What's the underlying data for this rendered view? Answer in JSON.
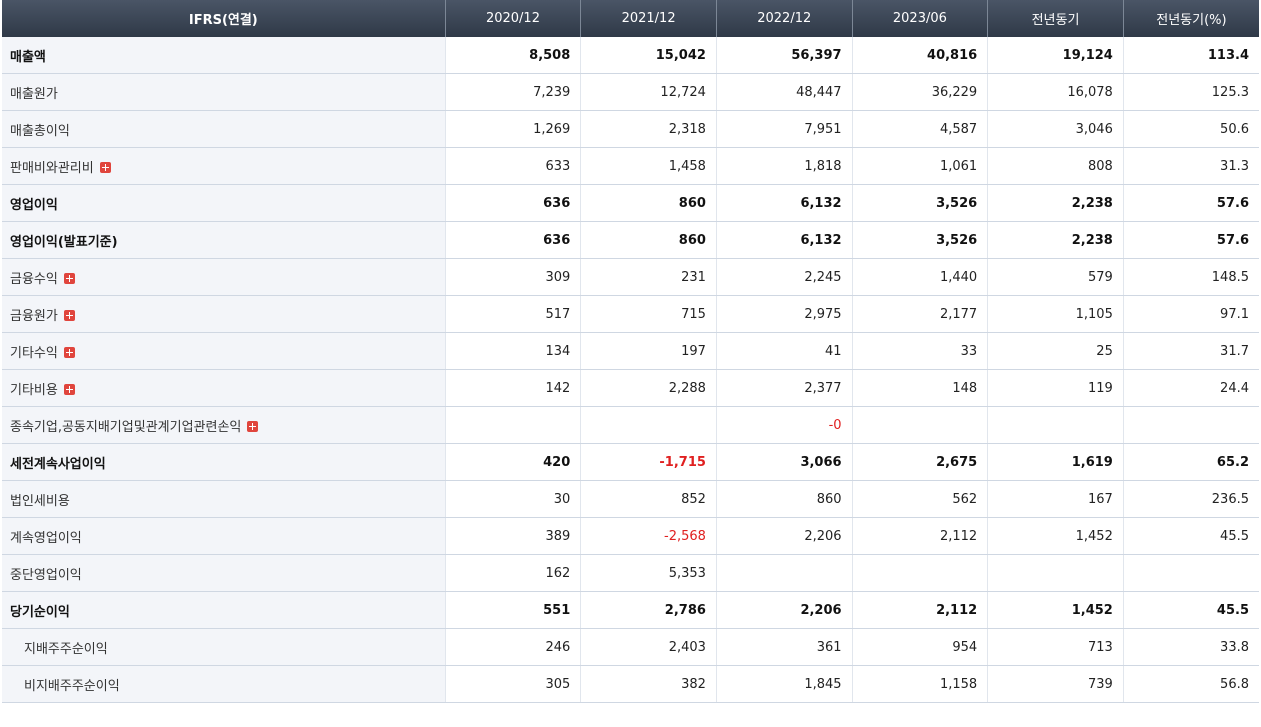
{
  "header": {
    "label": "IFRS(연결)",
    "columns": [
      "2020/12",
      "2021/12",
      "2022/12",
      "2023/06",
      "전년동기",
      "전년동기(%)"
    ]
  },
  "rows": [
    {
      "label": "매출액",
      "bold": true,
      "expand": false,
      "values": [
        "8,508",
        "15,042",
        "56,397",
        "40,816",
        "19,124",
        "113.4"
      ]
    },
    {
      "label": "매출원가",
      "values": [
        "7,239",
        "12,724",
        "48,447",
        "36,229",
        "16,078",
        "125.3"
      ]
    },
    {
      "label": "매출총이익",
      "values": [
        "1,269",
        "2,318",
        "7,951",
        "4,587",
        "3,046",
        "50.6"
      ]
    },
    {
      "label": "판매비와관리비",
      "expand": true,
      "values": [
        "633",
        "1,458",
        "1,818",
        "1,061",
        "808",
        "31.3"
      ]
    },
    {
      "label": "영업이익",
      "bold": true,
      "values": [
        "636",
        "860",
        "6,132",
        "3,526",
        "2,238",
        "57.6"
      ]
    },
    {
      "label": "영업이익(발표기준)",
      "bold": true,
      "values": [
        "636",
        "860",
        "6,132",
        "3,526",
        "2,238",
        "57.6"
      ]
    },
    {
      "label": "금융수익",
      "expand": true,
      "values": [
        "309",
        "231",
        "2,245",
        "1,440",
        "579",
        "148.5"
      ]
    },
    {
      "label": "금융원가",
      "expand": true,
      "values": [
        "517",
        "715",
        "2,975",
        "2,177",
        "1,105",
        "97.1"
      ]
    },
    {
      "label": "기타수익",
      "expand": true,
      "values": [
        "134",
        "197",
        "41",
        "33",
        "25",
        "31.7"
      ]
    },
    {
      "label": "기타비용",
      "expand": true,
      "values": [
        "142",
        "2,288",
        "2,377",
        "148",
        "119",
        "24.4"
      ]
    },
    {
      "label": "종속기업,공동지배기업및관계기업관련손익",
      "expand": true,
      "values": [
        "",
        "",
        "-0",
        "",
        "",
        ""
      ]
    },
    {
      "label": "세전계속사업이익",
      "bold": true,
      "values": [
        "420",
        "-1,715",
        "3,066",
        "2,675",
        "1,619",
        "65.2"
      ]
    },
    {
      "label": "법인세비용",
      "values": [
        "30",
        "852",
        "860",
        "562",
        "167",
        "236.5"
      ]
    },
    {
      "label": "계속영업이익",
      "values": [
        "389",
        "-2,568",
        "2,206",
        "2,112",
        "1,452",
        "45.5"
      ]
    },
    {
      "label": "중단영업이익",
      "values": [
        "162",
        "5,353",
        "",
        "",
        "",
        ""
      ]
    },
    {
      "label": "당기순이익",
      "bold": true,
      "values": [
        "551",
        "2,786",
        "2,206",
        "2,112",
        "1,452",
        "45.5"
      ]
    },
    {
      "label": "지배주주순이익",
      "sub": true,
      "values": [
        "246",
        "2,403",
        "361",
        "954",
        "713",
        "33.8"
      ]
    },
    {
      "label": "비지배주주순이익",
      "sub": true,
      "values": [
        "305",
        "382",
        "1,845",
        "1,158",
        "739",
        "56.8"
      ]
    }
  ],
  "colors": {
    "header": "#3a4454",
    "label_bg": "#f3f5f9",
    "negative": "#e02020",
    "expand_icon": "#e0453d"
  }
}
